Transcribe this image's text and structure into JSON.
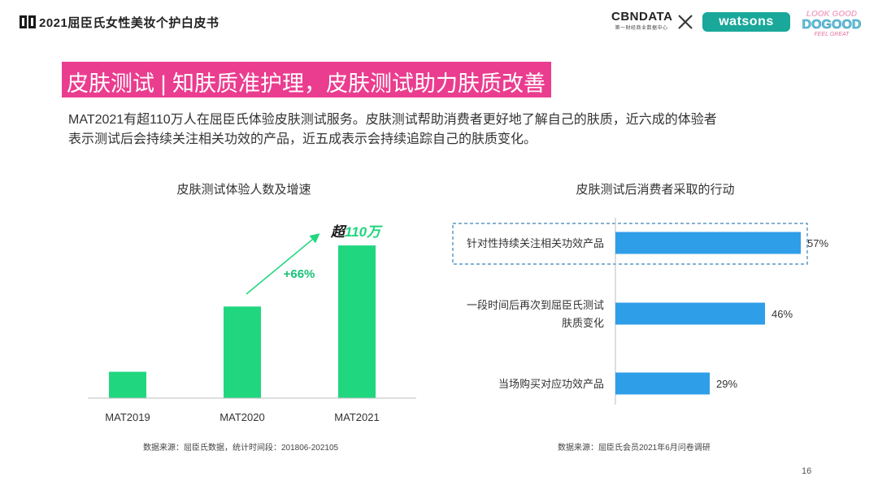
{
  "header": {
    "report_title": "2021屈臣氏女性美妆个护白皮书",
    "logos": {
      "cbndata_name": "CBNDATA",
      "cbndata_sub": "第一财经商业数据中心",
      "partner": "watsons",
      "campaign_line1": "LOOK GOOD",
      "campaign_line2": "DOGOOD",
      "campaign_line3": "FEEL GREAT"
    }
  },
  "section_title": "皮肤测试 | 知肤质准护理，皮肤测试助力肤质改善",
  "intro_line1": "MAT2021有超110万人在屈臣氏体验皮肤测试服务。皮肤测试帮助消费者更好地了解自己的肤质，近六成的体验者",
  "intro_line2": "表示测试后会持续关注相关功效的产品，近五成表示会持续追踪自己的肤质变化。",
  "left_chart": {
    "title": "皮肤测试体验人数及增速",
    "source": "数据来源：屈臣氏数据，统计时间段：201806-202105",
    "growth_label": "+66%",
    "callout_prefix": "超",
    "callout_value": "110万"
  },
  "right_chart": {
    "title": "皮肤测试后消费者采取的行动",
    "source": "数据来源：屈臣氏会员2021年6月问卷调研"
  },
  "chart_data": [
    {
      "type": "bar",
      "title": "皮肤测试体验人数及增速",
      "categories": [
        "MAT2019",
        "MAT2020",
        "MAT2021"
      ],
      "values": [
        19,
        66,
        110
      ],
      "unit": "万",
      "ylim": [
        0,
        120
      ],
      "annotations": [
        "+66%",
        "超110万"
      ],
      "color": "#20d67f",
      "grid": false
    },
    {
      "type": "bar",
      "orientation": "horizontal",
      "title": "皮肤测试后消费者采取的行动",
      "categories": [
        [
          "针对性持续关注相关功效产品"
        ],
        [
          "一段时间后再次到屈臣氏测试",
          "肤质变化"
        ],
        [
          "当场购买对应功效产品"
        ]
      ],
      "values": [
        57,
        46,
        29
      ],
      "value_labels": [
        "57%",
        "46%",
        "29%"
      ],
      "xlim": [
        0,
        70
      ],
      "highlighted": "针对性持续关注相关功效产品",
      "color": "#2f9ee8",
      "grid": false
    }
  ],
  "page_number": "16",
  "colors": {
    "title_bar": "#ea3d8f",
    "green_bar": "#20d67f",
    "blue_bar": "#2f9ee8",
    "highlight_border": "#3a82b8",
    "growth_text": "#19c27a",
    "watsons": "#19a89a"
  }
}
